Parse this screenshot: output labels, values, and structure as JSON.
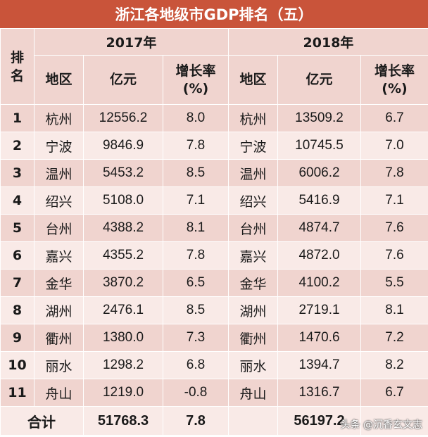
{
  "title": "浙江各地级市GDP排名（五）",
  "header": {
    "rank": "排名",
    "year_2017": "2017年",
    "year_2018": "2018年",
    "region": "地区",
    "gdp": "亿元",
    "growth": "增长率(%)"
  },
  "chart_data": {
    "type": "table",
    "title": "浙江各地级市GDP排名（五）",
    "columns": [
      "排名",
      "2017年 地区",
      "2017年 亿元",
      "2017年 增长率(%)",
      "2018年 地区",
      "2018年 亿元",
      "2018年 增长率(%)"
    ],
    "rows": [
      {
        "rank": "1",
        "city_2017": "杭州",
        "gdp_2017": "12556.2",
        "growth_2017": "8.0",
        "city_2018": "杭州",
        "gdp_2018": "13509.2",
        "growth_2018": "6.7"
      },
      {
        "rank": "2",
        "city_2017": "宁波",
        "gdp_2017": "9846.9",
        "growth_2017": "7.8",
        "city_2018": "宁波",
        "gdp_2018": "10745.5",
        "growth_2018": "7.0"
      },
      {
        "rank": "3",
        "city_2017": "温州",
        "gdp_2017": "5453.2",
        "growth_2017": "8.5",
        "city_2018": "温州",
        "gdp_2018": "6006.2",
        "growth_2018": "7.8"
      },
      {
        "rank": "4",
        "city_2017": "绍兴",
        "gdp_2017": "5108.0",
        "growth_2017": "7.1",
        "city_2018": "绍兴",
        "gdp_2018": "5416.9",
        "growth_2018": "7.1"
      },
      {
        "rank": "5",
        "city_2017": "台州",
        "gdp_2017": "4388.2",
        "growth_2017": "8.1",
        "city_2018": "台州",
        "gdp_2018": "4874.7",
        "growth_2018": "7.6"
      },
      {
        "rank": "6",
        "city_2017": "嘉兴",
        "gdp_2017": "4355.2",
        "growth_2017": "7.8",
        "city_2018": "嘉兴",
        "gdp_2018": "4872.0",
        "growth_2018": "7.6"
      },
      {
        "rank": "7",
        "city_2017": "金华",
        "gdp_2017": "3870.2",
        "growth_2017": "6.5",
        "city_2018": "金华",
        "gdp_2018": "4100.2",
        "growth_2018": "5.5"
      },
      {
        "rank": "8",
        "city_2017": "湖州",
        "gdp_2017": "2476.1",
        "growth_2017": "8.5",
        "city_2018": "湖州",
        "gdp_2018": "2719.1",
        "growth_2018": "8.1"
      },
      {
        "rank": "9",
        "city_2017": "衢州",
        "gdp_2017": "1380.0",
        "growth_2017": "7.3",
        "city_2018": "衢州",
        "gdp_2018": "1470.6",
        "growth_2018": "7.2"
      },
      {
        "rank": "10",
        "city_2017": "丽水",
        "gdp_2017": "1298.2",
        "growth_2017": "6.8",
        "city_2018": "丽水",
        "gdp_2018": "1394.7",
        "growth_2018": "8.2"
      },
      {
        "rank": "11",
        "city_2017": "舟山",
        "gdp_2017": "1219.0",
        "growth_2017": "-0.8",
        "city_2018": "舟山",
        "gdp_2018": "1316.7",
        "growth_2018": "6.7"
      }
    ],
    "total": {
      "label": "合计",
      "gdp_2017": "51768.3",
      "growth_2017": "7.8",
      "gdp_2018": "56197.2",
      "growth_2018": ""
    }
  },
  "watermark": "头条 @沉香玄文志",
  "colors": {
    "title_bg": "#c9543a",
    "row_dark": "#f0d4cf",
    "row_light": "#f9eae7"
  }
}
